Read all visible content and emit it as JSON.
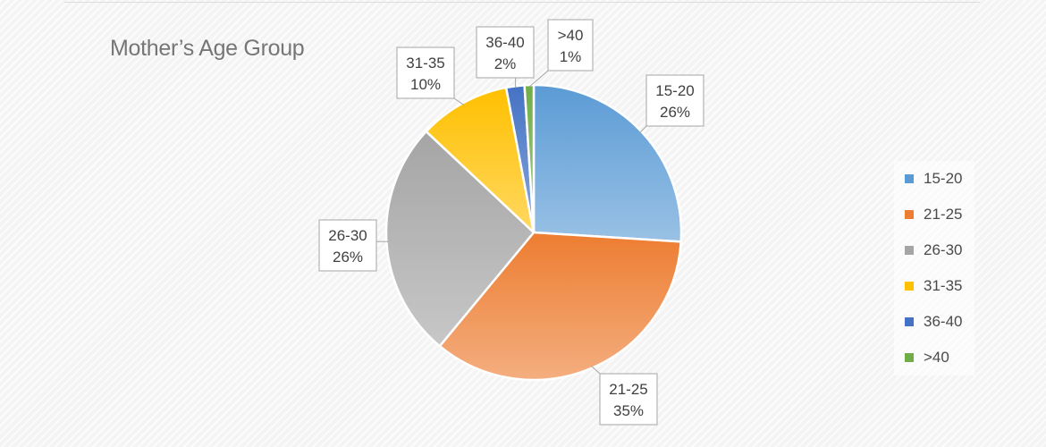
{
  "chart_data": {
    "type": "pie",
    "title": "Mother’s Age Group",
    "slices": [
      {
        "label": "15-20",
        "percent_text": "26%",
        "value": 26,
        "color": "#5b9bd5"
      },
      {
        "label": "21-25",
        "percent_text": "35%",
        "value": 35,
        "color": "#ed7d31"
      },
      {
        "label": "26-30",
        "percent_text": "26%",
        "value": 26,
        "color": "#a5a5a5"
      },
      {
        "label": "31-35",
        "percent_text": "10%",
        "value": 10,
        "color": "#ffc000"
      },
      {
        "label": "36-40",
        "percent_text": "2%",
        "value": 2,
        "color": "#4472c4"
      },
      {
        "label": ">40",
        "percent_text": "1%",
        "value": 1,
        "color": "#70ad47"
      }
    ],
    "legend_position": "right",
    "data_labels": "callouts with leader lines"
  }
}
